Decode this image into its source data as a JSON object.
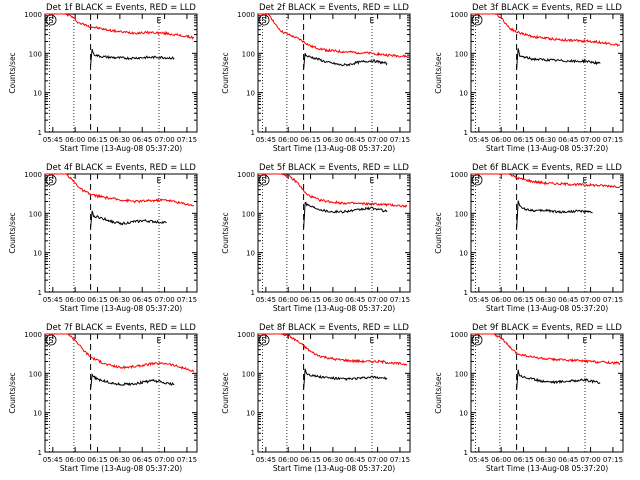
{
  "chart_data": [
    {
      "type": "line",
      "title": "Det 1f BLACK = Events, RED = LLD",
      "xlabel": "Start Time (13-Aug-08 05:37:20)",
      "ylabel": "Counts/sec",
      "yscale": "log",
      "ylim": [
        1,
        1000
      ],
      "xlim": [
        0,
        100
      ],
      "x_ticks": [
        "05:45",
        "06:00",
        "06:15",
        "06:30",
        "06:45",
        "07:00",
        "07:15"
      ],
      "y_ticks": [
        "1",
        "10",
        "100",
        "1000"
      ],
      "markers": {
        "S_x": 2,
        "E_x": 75
      },
      "vlines_dotted": [
        3,
        19,
        75
      ],
      "vlines_dashed": [
        30
      ],
      "series": [
        {
          "color": "#ff0000",
          "x": [
            0,
            5,
            9,
            13,
            17,
            22,
            30,
            40,
            50,
            60,
            70,
            80,
            90,
            98
          ],
          "y": [
            1000,
            1000,
            1000,
            1000,
            900,
            600,
            480,
            400,
            350,
            330,
            340,
            320,
            280,
            250
          ]
        },
        {
          "color": "#000000",
          "x": [
            30,
            31,
            32,
            34,
            38,
            45,
            55,
            65,
            75,
            85
          ],
          "y": [
            50,
            130,
            95,
            88,
            82,
            78,
            75,
            78,
            80,
            75
          ]
        }
      ]
    },
    {
      "type": "line",
      "title": "Det 2f BLACK = Events, RED = LLD",
      "xlabel": "Start Time (13-Aug-08 05:37:20)",
      "ylabel": "Counts/sec",
      "yscale": "log",
      "ylim": [
        1,
        1000
      ],
      "xlim": [
        0,
        100
      ],
      "x_ticks": [
        "05:45",
        "06:00",
        "06:15",
        "06:30",
        "06:45",
        "07:00",
        "07:15"
      ],
      "y_ticks": [
        "1",
        "10",
        "100",
        "1000"
      ],
      "markers": {
        "S_x": 2,
        "E_x": 75
      },
      "vlines_dotted": [
        3,
        19,
        75
      ],
      "vlines_dashed": [
        30
      ],
      "series": [
        {
          "color": "#ff0000",
          "x": [
            0,
            4,
            8,
            12,
            16,
            22,
            28,
            35,
            45,
            55,
            65,
            75,
            85,
            95,
            98
          ],
          "y": [
            1000,
            1000,
            900,
            500,
            350,
            280,
            220,
            150,
            120,
            110,
            105,
            100,
            90,
            85,
            85
          ]
        },
        {
          "color": "#000000",
          "x": [
            30,
            31,
            32,
            35,
            40,
            45,
            50,
            55,
            60,
            65,
            70,
            75,
            80,
            85
          ],
          "y": [
            40,
            100,
            85,
            80,
            70,
            60,
            55,
            50,
            52,
            58,
            62,
            65,
            60,
            55
          ]
        }
      ]
    },
    {
      "type": "line",
      "title": "Det 3f BLACK = Events, RED = LLD",
      "xlabel": "Start Time (13-Aug-08 05:37:20)",
      "ylabel": "Counts/sec",
      "yscale": "log",
      "ylim": [
        1,
        1000
      ],
      "xlim": [
        0,
        100
      ],
      "x_ticks": [
        "05:45",
        "06:00",
        "06:15",
        "06:30",
        "06:45",
        "07:00",
        "07:15"
      ],
      "y_ticks": [
        "1",
        "10",
        "100",
        "1000"
      ],
      "markers": {
        "S_x": 2,
        "E_x": 75
      },
      "vlines_dotted": [
        3,
        19,
        75
      ],
      "vlines_dashed": [
        30
      ],
      "series": [
        {
          "color": "#ff0000",
          "x": [
            0,
            5,
            10,
            16,
            20,
            25,
            30,
            40,
            50,
            60,
            70,
            80,
            90,
            98
          ],
          "y": [
            1000,
            1000,
            1000,
            1000,
            800,
            450,
            350,
            270,
            240,
            220,
            210,
            200,
            180,
            160
          ]
        },
        {
          "color": "#000000",
          "x": [
            30,
            31,
            32,
            35,
            40,
            50,
            60,
            70,
            75,
            85
          ],
          "y": [
            40,
            130,
            85,
            80,
            72,
            68,
            65,
            62,
            64,
            55
          ]
        }
      ]
    },
    {
      "type": "line",
      "title": "Det 4f BLACK = Events, RED = LLD",
      "xlabel": "Start Time (13-Aug-08 05:37:20)",
      "ylabel": "Counts/sec",
      "yscale": "log",
      "ylim": [
        1,
        1000
      ],
      "xlim": [
        0,
        100
      ],
      "x_ticks": [
        "05:45",
        "06:00",
        "06:15",
        "06:30",
        "06:45",
        "07:00",
        "07:15"
      ],
      "y_ticks": [
        "1",
        "10",
        "100",
        "1000"
      ],
      "markers": {
        "S_x": 2,
        "E_x": 75
      },
      "vlines_dotted": [
        3,
        19,
        75
      ],
      "vlines_dashed": [
        30
      ],
      "series": [
        {
          "color": "#ff0000",
          "x": [
            0,
            5,
            10,
            14,
            18,
            24,
            30,
            40,
            50,
            60,
            70,
            80,
            90,
            98
          ],
          "y": [
            1000,
            1000,
            1000,
            1000,
            700,
            400,
            300,
            250,
            220,
            200,
            210,
            220,
            180,
            160
          ]
        },
        {
          "color": "#000000",
          "x": [
            30,
            31,
            32,
            35,
            40,
            45,
            50,
            55,
            60,
            65,
            70,
            75,
            80
          ],
          "y": [
            40,
            110,
            85,
            80,
            70,
            60,
            55,
            58,
            62,
            65,
            62,
            60,
            58
          ]
        }
      ]
    },
    {
      "type": "line",
      "title": "Det 5f BLACK = Events, RED = LLD",
      "xlabel": "Start Time (13-Aug-08 05:37:20)",
      "ylabel": "Counts/sec",
      "yscale": "log",
      "ylim": [
        1,
        1000
      ],
      "xlim": [
        0,
        100
      ],
      "x_ticks": [
        "05:45",
        "06:00",
        "06:15",
        "06:30",
        "06:45",
        "07:00",
        "07:15"
      ],
      "y_ticks": [
        "1",
        "10",
        "100",
        "1000"
      ],
      "markers": {
        "S_x": 2,
        "E_x": 75
      },
      "vlines_dotted": [
        3,
        19,
        75
      ],
      "vlines_dashed": [
        30
      ],
      "series": [
        {
          "color": "#ff0000",
          "x": [
            0,
            5,
            10,
            15,
            20,
            26,
            32,
            40,
            50,
            60,
            70,
            80,
            90,
            98
          ],
          "y": [
            1000,
            1000,
            1000,
            1000,
            900,
            600,
            300,
            220,
            190,
            180,
            175,
            170,
            160,
            150
          ]
        },
        {
          "color": "#000000",
          "x": [
            30,
            31,
            32,
            35,
            40,
            45,
            50,
            55,
            60,
            65,
            70,
            75,
            80,
            85
          ],
          "y": [
            40,
            200,
            170,
            150,
            130,
            115,
            110,
            110,
            115,
            120,
            130,
            135,
            125,
            110
          ]
        }
      ]
    },
    {
      "type": "line",
      "title": "Det 6f BLACK = Events, RED = LLD",
      "xlabel": "Start Time (13-Aug-08 05:37:20)",
      "ylabel": "Counts/sec",
      "yscale": "log",
      "ylim": [
        1,
        1000
      ],
      "xlim": [
        0,
        100
      ],
      "x_ticks": [
        "05:45",
        "06:00",
        "06:15",
        "06:30",
        "06:45",
        "07:00",
        "07:15"
      ],
      "y_ticks": [
        "1",
        "10",
        "100",
        "1000"
      ],
      "markers": {
        "S_x": 2,
        "E_x": 75
      },
      "vlines_dotted": [
        3,
        19,
        75
      ],
      "vlines_dashed": [
        30
      ],
      "series": [
        {
          "color": "#ff0000",
          "x": [
            0,
            10,
            20,
            25,
            30,
            40,
            50,
            60,
            70,
            80,
            90,
            98
          ],
          "y": [
            1000,
            1000,
            1000,
            1000,
            800,
            650,
            580,
            560,
            540,
            520,
            500,
            480
          ]
        },
        {
          "color": "#000000",
          "x": [
            30,
            31,
            32,
            35,
            40,
            45,
            50,
            55,
            60,
            65,
            70,
            75,
            80
          ],
          "y": [
            40,
            220,
            150,
            130,
            120,
            115,
            120,
            110,
            108,
            110,
            115,
            110,
            105
          ]
        }
      ]
    },
    {
      "type": "line",
      "title": "Det 7f BLACK = Events, RED = LLD",
      "xlabel": "Start Time (13-Aug-08 05:37:20)",
      "ylabel": "Counts/sec",
      "yscale": "log",
      "ylim": [
        1,
        1000
      ],
      "xlim": [
        0,
        100
      ],
      "x_ticks": [
        "05:45",
        "06:00",
        "06:15",
        "06:30",
        "06:45",
        "07:00",
        "07:15"
      ],
      "y_ticks": [
        "1",
        "10",
        "100",
        "1000"
      ],
      "markers": {
        "S_x": 2,
        "E_x": 75
      },
      "vlines_dotted": [
        3,
        19,
        75
      ],
      "vlines_dashed": [
        30
      ],
      "series": [
        {
          "color": "#ff0000",
          "x": [
            0,
            5,
            10,
            15,
            20,
            25,
            30,
            40,
            50,
            60,
            70,
            80,
            90,
            98
          ],
          "y": [
            1000,
            1000,
            1000,
            1000,
            700,
            400,
            260,
            170,
            140,
            150,
            175,
            180,
            140,
            110
          ]
        },
        {
          "color": "#000000",
          "x": [
            30,
            31,
            32,
            35,
            40,
            45,
            50,
            55,
            60,
            65,
            70,
            75,
            80,
            85
          ],
          "y": [
            40,
            95,
            80,
            70,
            62,
            55,
            52,
            53,
            55,
            60,
            65,
            62,
            55,
            52
          ]
        }
      ]
    },
    {
      "type": "line",
      "title": "Det 8f BLACK = Events, RED = LLD",
      "xlabel": "Start Time (13-Aug-08 05:37:20)",
      "ylabel": "Counts/sec",
      "yscale": "log",
      "ylim": [
        1,
        1000
      ],
      "xlim": [
        0,
        100
      ],
      "x_ticks": [
        "05:45",
        "06:00",
        "06:15",
        "06:30",
        "06:45",
        "07:00",
        "07:15"
      ],
      "y_ticks": [
        "1",
        "10",
        "100",
        "1000"
      ],
      "markers": {
        "S_x": 2,
        "E_x": 75
      },
      "vlines_dotted": [
        3,
        19,
        75
      ],
      "vlines_dashed": [
        30
      ],
      "series": [
        {
          "color": "#ff0000",
          "x": [
            0,
            5,
            10,
            15,
            20,
            25,
            30,
            35,
            40,
            50,
            60,
            70,
            80,
            90,
            98
          ],
          "y": [
            1000,
            1000,
            1000,
            1000,
            900,
            700,
            500,
            350,
            280,
            230,
            210,
            200,
            200,
            180,
            170
          ]
        },
        {
          "color": "#000000",
          "x": [
            30,
            31,
            32,
            35,
            40,
            45,
            50,
            55,
            60,
            65,
            70,
            75,
            80,
            85
          ],
          "y": [
            40,
            130,
            100,
            90,
            82,
            78,
            75,
            72,
            72,
            74,
            76,
            80,
            78,
            75
          ]
        }
      ]
    },
    {
      "type": "line",
      "title": "Det 9f BLACK = Events, RED = LLD",
      "xlabel": "Start Time (13-Aug-08 05:37:20)",
      "ylabel": "Counts/sec",
      "yscale": "log",
      "ylim": [
        1,
        1000
      ],
      "xlim": [
        0,
        100
      ],
      "x_ticks": [
        "05:45",
        "06:00",
        "06:15",
        "06:30",
        "06:45",
        "07:00",
        "07:15"
      ],
      "y_ticks": [
        "1",
        "10",
        "100",
        "1000"
      ],
      "markers": {
        "S_x": 2,
        "E_x": 75
      },
      "vlines_dotted": [
        3,
        19,
        75
      ],
      "vlines_dashed": [
        30
      ],
      "series": [
        {
          "color": "#ff0000",
          "x": [
            0,
            5,
            10,
            15,
            20,
            25,
            30,
            40,
            50,
            60,
            70,
            80,
            90,
            98
          ],
          "y": [
            1000,
            1000,
            1000,
            1000,
            800,
            480,
            320,
            260,
            230,
            220,
            210,
            200,
            190,
            180
          ]
        },
        {
          "color": "#000000",
          "x": [
            30,
            31,
            32,
            35,
            40,
            45,
            50,
            55,
            60,
            65,
            70,
            75,
            80,
            85
          ],
          "y": [
            40,
            120,
            90,
            80,
            72,
            65,
            62,
            60,
            62,
            64,
            66,
            68,
            62,
            58
          ]
        }
      ]
    }
  ]
}
